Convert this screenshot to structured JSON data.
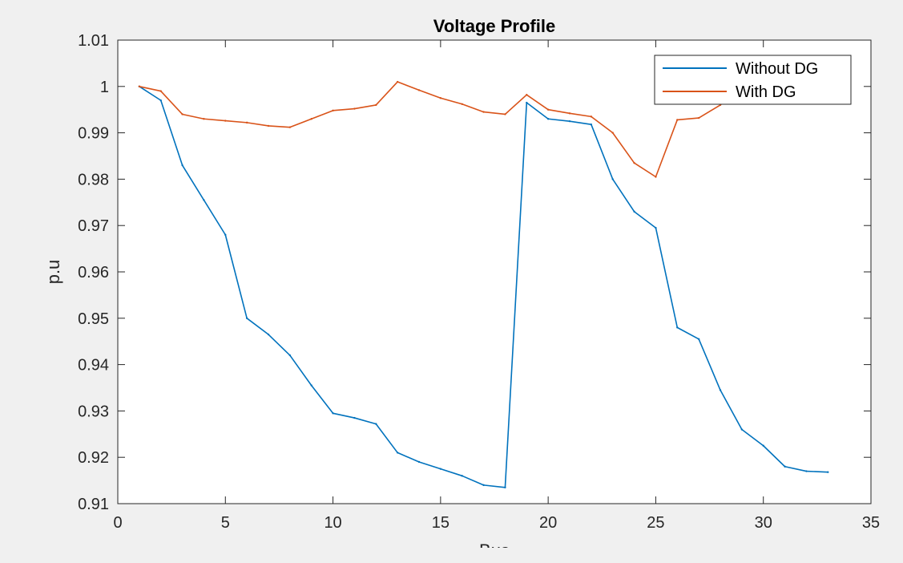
{
  "chart_data": {
    "type": "line",
    "title": "Voltage Profile",
    "xlabel": "Bus",
    "ylabel": "p.u",
    "xlim": [
      0,
      35
    ],
    "ylim": [
      0.91,
      1.01
    ],
    "xticks": [
      "0",
      "5",
      "10",
      "15",
      "20",
      "25",
      "30",
      "35"
    ],
    "yticks": [
      "0.91",
      "0.92",
      "0.93",
      "0.94",
      "0.95",
      "0.96",
      "0.97",
      "0.98",
      "0.99",
      "1",
      "1.01"
    ],
    "grid": false,
    "legend_position": "top-right",
    "x": [
      1,
      2,
      3,
      4,
      5,
      6,
      7,
      8,
      9,
      10,
      11,
      12,
      13,
      14,
      15,
      16,
      17,
      18,
      19,
      20,
      21,
      22,
      23,
      24,
      25,
      26,
      27,
      28,
      29,
      30,
      31,
      32,
      33
    ],
    "series": [
      {
        "name": "Without DG",
        "color": "#0072bd",
        "values": [
          1.0,
          0.997,
          0.983,
          0.9755,
          0.968,
          0.95,
          0.9465,
          0.942,
          0.9355,
          0.9295,
          0.9285,
          0.9272,
          0.921,
          0.919,
          0.9175,
          0.916,
          0.914,
          0.9135,
          0.9965,
          0.993,
          0.9925,
          0.9918,
          0.98,
          0.973,
          0.9695,
          0.948,
          0.9455,
          0.9345,
          0.926,
          0.9225,
          0.918,
          0.917,
          0.9168
        ]
      },
      {
        "name": "With DG",
        "color": "#d95319",
        "values": [
          1.0,
          0.999,
          0.994,
          0.993,
          0.9926,
          0.9922,
          0.9915,
          0.9912,
          0.993,
          0.9948,
          0.9952,
          0.996,
          1.001,
          0.9992,
          0.9975,
          0.9962,
          0.9945,
          0.994,
          0.9982,
          0.995,
          0.9942,
          0.9935,
          0.99,
          0.9835,
          0.9805,
          0.9928,
          0.9932,
          0.996,
          1.0,
          1.0,
          1.0,
          1.0,
          1.0
        ]
      }
    ]
  }
}
